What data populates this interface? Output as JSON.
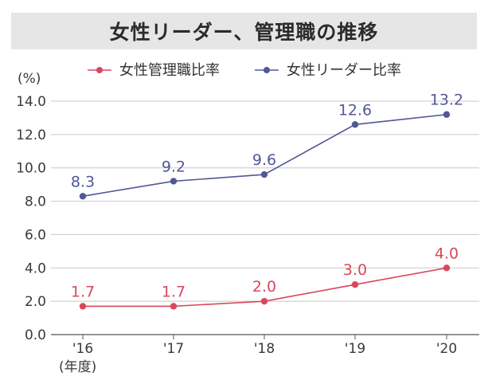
{
  "chart_data": {
    "type": "line",
    "title": "女性リーダー、管理職の推移",
    "ylabel": "(%)",
    "xlabel_note": "(年度)",
    "categories": [
      "'16",
      "'17",
      "'18",
      "'19",
      "'20"
    ],
    "ylim": [
      0,
      14
    ],
    "yticks": [
      "0.0",
      "2.0",
      "4.0",
      "6.0",
      "8.0",
      "10.0",
      "12.0",
      "14.0"
    ],
    "grid": true,
    "legend_position": "top",
    "series": [
      {
        "name": "女性管理職比率",
        "color": "#d9475e",
        "values": [
          1.7,
          1.7,
          2.0,
          3.0,
          4.0
        ],
        "labels": [
          "1.7",
          "1.7",
          "2.0",
          "3.0",
          "4.0"
        ]
      },
      {
        "name": "女性リーダー比率",
        "color": "#525896",
        "values": [
          8.3,
          9.2,
          9.6,
          12.6,
          13.2
        ],
        "labels": [
          "8.3",
          "9.2",
          "9.6",
          "12.6",
          "13.2"
        ]
      }
    ]
  }
}
